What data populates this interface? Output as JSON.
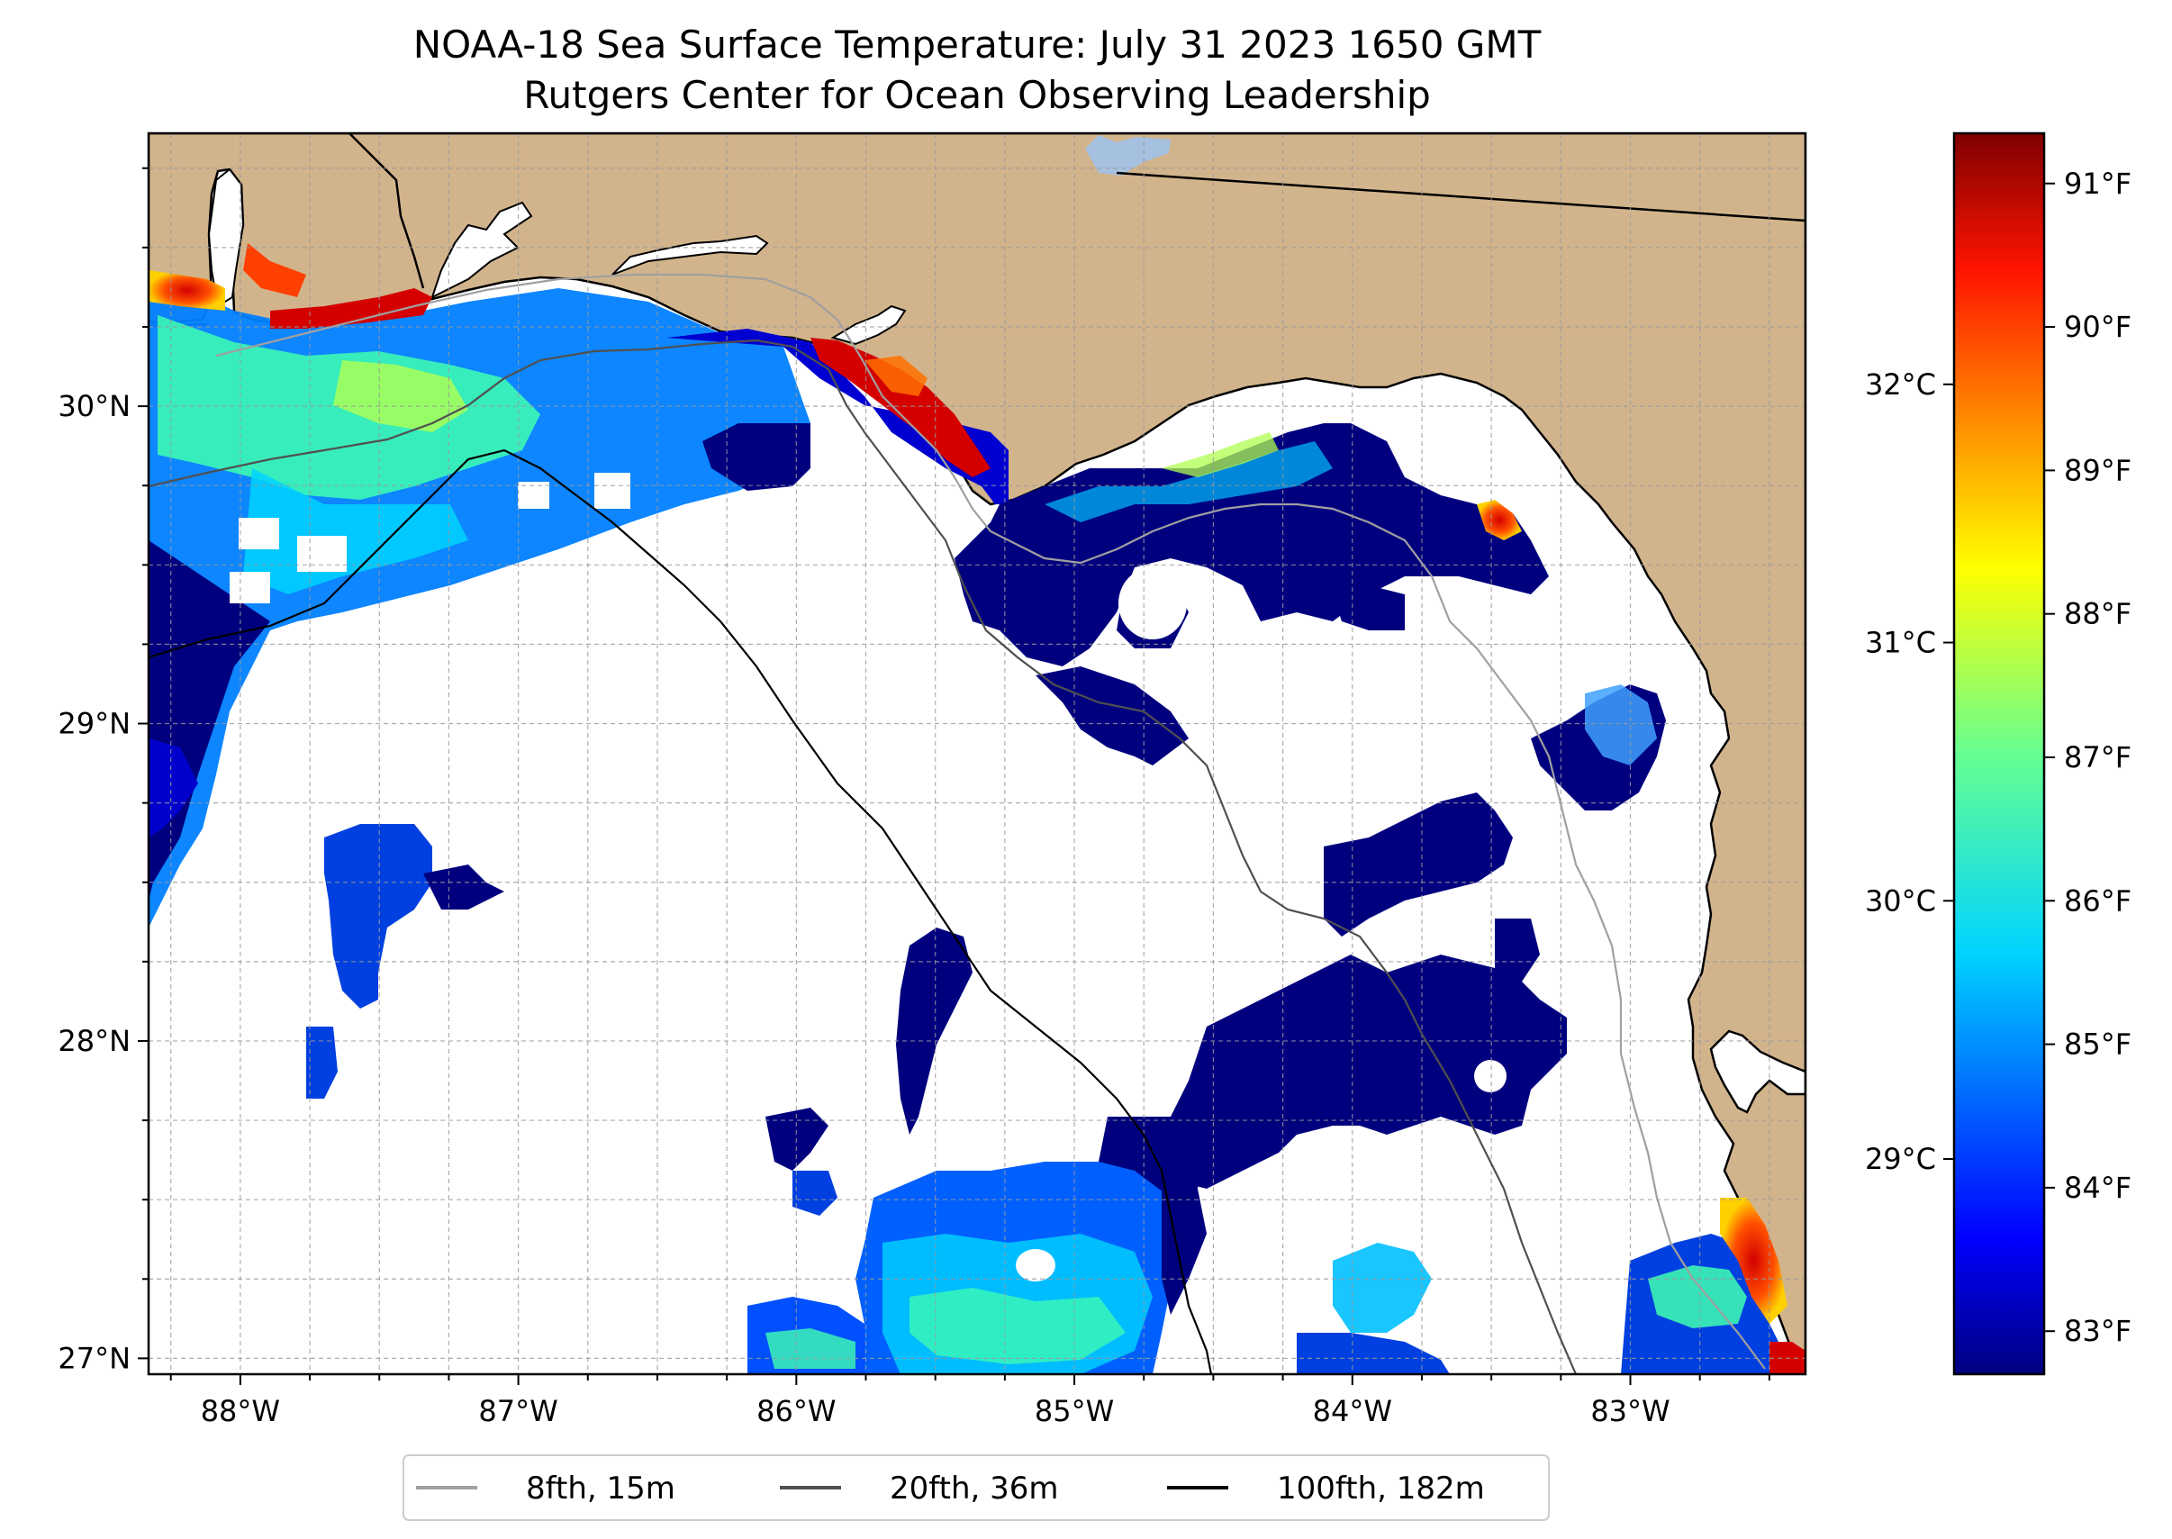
{
  "title": {
    "line1": "NOAA-18 Sea Surface Temperature: July 31 2023 1650 GMT",
    "line2": "Rutgers Center for Ocean Observing Leadership"
  },
  "map": {
    "lon_range": [
      -88.33,
      -82.37
    ],
    "lat_range": [
      26.95,
      30.86
    ],
    "x_ticks": [
      {
        "value": -88,
        "label": "88°W"
      },
      {
        "value": -87,
        "label": "87°W"
      },
      {
        "value": -86,
        "label": "86°W"
      },
      {
        "value": -85,
        "label": "85°W"
      },
      {
        "value": -84,
        "label": "84°W"
      },
      {
        "value": -83,
        "label": "83°W"
      }
    ],
    "y_ticks": [
      {
        "value": 27,
        "label": "27°N"
      },
      {
        "value": 28,
        "label": "28°N"
      },
      {
        "value": 29,
        "label": "29°N"
      },
      {
        "value": 30,
        "label": "30°N"
      }
    ],
    "grid": true,
    "land_color": "#d2b48c",
    "ocean_no_data_color": "#ffffff",
    "lake_color": "#a6c0e0"
  },
  "colorbar": {
    "colormap": "jet",
    "fahrenheit_range": [
      82.7,
      91.35
    ],
    "fahrenheit_ticks": [
      {
        "value": 83,
        "label": "83°F"
      },
      {
        "value": 84,
        "label": "84°F"
      },
      {
        "value": 85,
        "label": "85°F"
      },
      {
        "value": 86,
        "label": "86°F"
      },
      {
        "value": 87,
        "label": "87°F"
      },
      {
        "value": 88,
        "label": "88°F"
      },
      {
        "value": 89,
        "label": "89°F"
      },
      {
        "value": 90,
        "label": "90°F"
      },
      {
        "value": 91,
        "label": "91°F"
      }
    ],
    "celsius_ticks": [
      {
        "value": 29,
        "label": "29°C"
      },
      {
        "value": 30,
        "label": "30°C"
      },
      {
        "value": 31,
        "label": "31°C"
      },
      {
        "value": 32,
        "label": "32°C"
      }
    ]
  },
  "legend": {
    "placement": "bottom-center",
    "items": [
      {
        "label": "8fth, 15m",
        "color": "#a0a0a0"
      },
      {
        "label": "20fth, 36m",
        "color": "#505050"
      },
      {
        "label": "100fth, 182m",
        "color": "#000000"
      }
    ]
  }
}
